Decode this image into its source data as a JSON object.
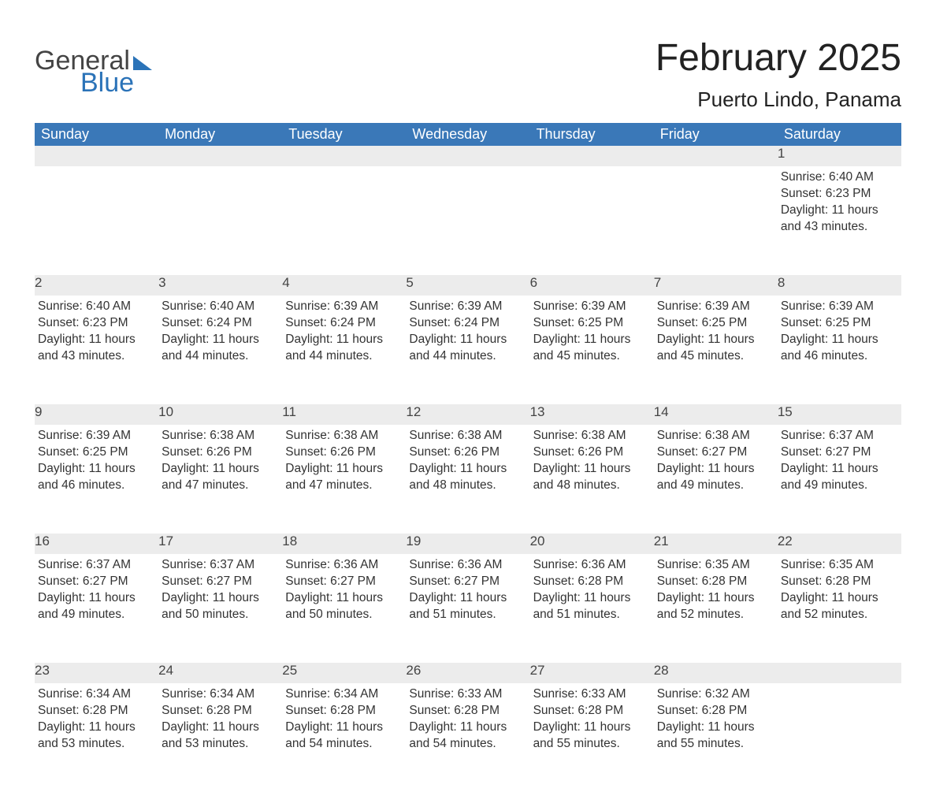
{
  "logo": {
    "word1": "General",
    "word2": "Blue"
  },
  "title": "February 2025",
  "location": "Puerto Lindo, Panama",
  "colors": {
    "header_bg": "#3a78b8",
    "header_fg": "#ffffff",
    "daynum_bg": "#ececec",
    "row_border": "#3a78b8",
    "text": "#333333",
    "logo_gray": "#444444",
    "logo_blue": "#2b73b8",
    "background": "#ffffff"
  },
  "weekdays": [
    "Sunday",
    "Monday",
    "Tuesday",
    "Wednesday",
    "Thursday",
    "Friday",
    "Saturday"
  ],
  "weeks": [
    [
      null,
      null,
      null,
      null,
      null,
      null,
      {
        "n": "1",
        "sunrise": "6:40 AM",
        "sunset": "6:23 PM",
        "daylight": "11 hours and 43 minutes."
      }
    ],
    [
      {
        "n": "2",
        "sunrise": "6:40 AM",
        "sunset": "6:23 PM",
        "daylight": "11 hours and 43 minutes."
      },
      {
        "n": "3",
        "sunrise": "6:40 AM",
        "sunset": "6:24 PM",
        "daylight": "11 hours and 44 minutes."
      },
      {
        "n": "4",
        "sunrise": "6:39 AM",
        "sunset": "6:24 PM",
        "daylight": "11 hours and 44 minutes."
      },
      {
        "n": "5",
        "sunrise": "6:39 AM",
        "sunset": "6:24 PM",
        "daylight": "11 hours and 44 minutes."
      },
      {
        "n": "6",
        "sunrise": "6:39 AM",
        "sunset": "6:25 PM",
        "daylight": "11 hours and 45 minutes."
      },
      {
        "n": "7",
        "sunrise": "6:39 AM",
        "sunset": "6:25 PM",
        "daylight": "11 hours and 45 minutes."
      },
      {
        "n": "8",
        "sunrise": "6:39 AM",
        "sunset": "6:25 PM",
        "daylight": "11 hours and 46 minutes."
      }
    ],
    [
      {
        "n": "9",
        "sunrise": "6:39 AM",
        "sunset": "6:25 PM",
        "daylight": "11 hours and 46 minutes."
      },
      {
        "n": "10",
        "sunrise": "6:38 AM",
        "sunset": "6:26 PM",
        "daylight": "11 hours and 47 minutes."
      },
      {
        "n": "11",
        "sunrise": "6:38 AM",
        "sunset": "6:26 PM",
        "daylight": "11 hours and 47 minutes."
      },
      {
        "n": "12",
        "sunrise": "6:38 AM",
        "sunset": "6:26 PM",
        "daylight": "11 hours and 48 minutes."
      },
      {
        "n": "13",
        "sunrise": "6:38 AM",
        "sunset": "6:26 PM",
        "daylight": "11 hours and 48 minutes."
      },
      {
        "n": "14",
        "sunrise": "6:38 AM",
        "sunset": "6:27 PM",
        "daylight": "11 hours and 49 minutes."
      },
      {
        "n": "15",
        "sunrise": "6:37 AM",
        "sunset": "6:27 PM",
        "daylight": "11 hours and 49 minutes."
      }
    ],
    [
      {
        "n": "16",
        "sunrise": "6:37 AM",
        "sunset": "6:27 PM",
        "daylight": "11 hours and 49 minutes."
      },
      {
        "n": "17",
        "sunrise": "6:37 AM",
        "sunset": "6:27 PM",
        "daylight": "11 hours and 50 minutes."
      },
      {
        "n": "18",
        "sunrise": "6:36 AM",
        "sunset": "6:27 PM",
        "daylight": "11 hours and 50 minutes."
      },
      {
        "n": "19",
        "sunrise": "6:36 AM",
        "sunset": "6:27 PM",
        "daylight": "11 hours and 51 minutes."
      },
      {
        "n": "20",
        "sunrise": "6:36 AM",
        "sunset": "6:28 PM",
        "daylight": "11 hours and 51 minutes."
      },
      {
        "n": "21",
        "sunrise": "6:35 AM",
        "sunset": "6:28 PM",
        "daylight": "11 hours and 52 minutes."
      },
      {
        "n": "22",
        "sunrise": "6:35 AM",
        "sunset": "6:28 PM",
        "daylight": "11 hours and 52 minutes."
      }
    ],
    [
      {
        "n": "23",
        "sunrise": "6:34 AM",
        "sunset": "6:28 PM",
        "daylight": "11 hours and 53 minutes."
      },
      {
        "n": "24",
        "sunrise": "6:34 AM",
        "sunset": "6:28 PM",
        "daylight": "11 hours and 53 minutes."
      },
      {
        "n": "25",
        "sunrise": "6:34 AM",
        "sunset": "6:28 PM",
        "daylight": "11 hours and 54 minutes."
      },
      {
        "n": "26",
        "sunrise": "6:33 AM",
        "sunset": "6:28 PM",
        "daylight": "11 hours and 54 minutes."
      },
      {
        "n": "27",
        "sunrise": "6:33 AM",
        "sunset": "6:28 PM",
        "daylight": "11 hours and 55 minutes."
      },
      {
        "n": "28",
        "sunrise": "6:32 AM",
        "sunset": "6:28 PM",
        "daylight": "11 hours and 55 minutes."
      },
      null
    ]
  ],
  "labels": {
    "sunrise": "Sunrise: ",
    "sunset": "Sunset: ",
    "daylight": "Daylight: "
  }
}
